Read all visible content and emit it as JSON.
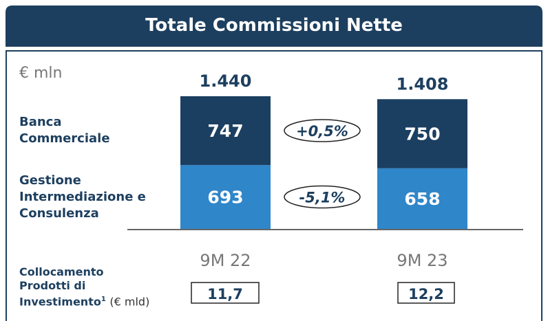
{
  "chart_data": {
    "type": "stacked_bar",
    "title": "Totale Commissioni Nette",
    "unit": "€ mln",
    "categories": [
      "9M 22",
      "9M 23"
    ],
    "series": [
      {
        "name": "Banca Commerciale",
        "color": "#1b3f61",
        "values": [
          747,
          750
        ]
      },
      {
        "name": "Gestione Intermediazione e Consulenza",
        "color": "#2f86c9",
        "values": [
          693,
          658
        ]
      }
    ],
    "totals": [
      {
        "value": 1440,
        "label": "1.440"
      },
      {
        "value": 1408,
        "label": "1.408"
      }
    ],
    "changes": [
      {
        "value": 0.5,
        "label": "+0,5%"
      },
      {
        "value": -5.1,
        "label": "-5,1%"
      }
    ],
    "placement": {
      "label": "Collocamento Prodotti di Investimento",
      "note": "1",
      "unit": "(€ mld)",
      "values": [
        11.7,
        12.2
      ],
      "value_labels": [
        "11,7",
        "12,2"
      ]
    },
    "ylim": [
      0,
      1440
    ]
  }
}
